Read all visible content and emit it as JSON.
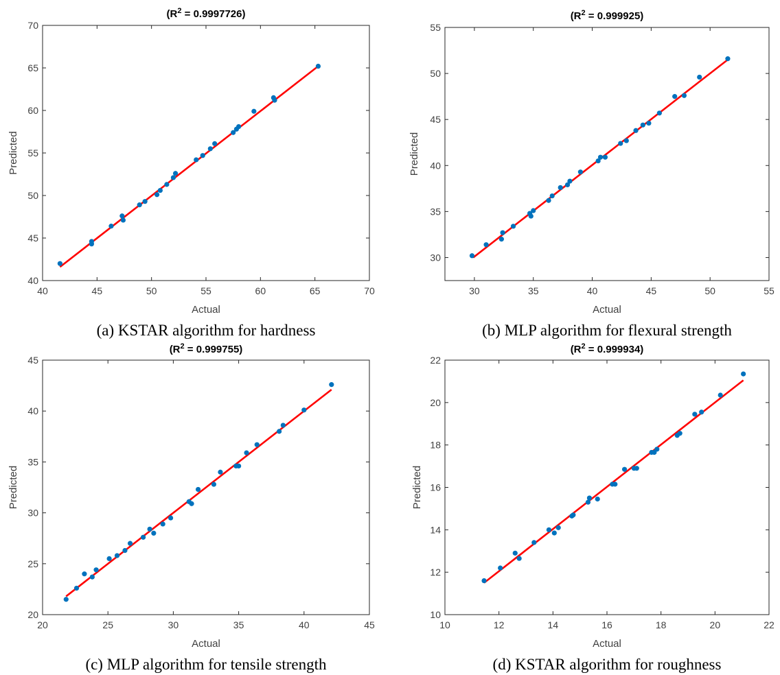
{
  "chart_data": [
    {
      "type": "scatter",
      "title_prefix": "(R",
      "title_sup": "2",
      "title_suffix": " = 0.9997726)",
      "xlabel": "Actual",
      "ylabel": "Predicted",
      "caption": "(a) KSTAR algorithm for hardness",
      "xlim": [
        40,
        70
      ],
      "ylim": [
        40,
        70
      ],
      "xticks": [
        40,
        45,
        50,
        55,
        60,
        65,
        70
      ],
      "yticks": [
        40,
        45,
        50,
        55,
        60,
        65,
        70
      ],
      "grid": false,
      "colors": {
        "points": "#0072BD",
        "fit_line": "#FF0000"
      },
      "fit_line": {
        "x": [
          41.6,
          65.3
        ],
        "y": [
          41.6,
          65.2
        ]
      },
      "points": {
        "x": [
          41.6,
          44.5,
          44.5,
          46.3,
          47.3,
          47.4,
          48.9,
          49.4,
          50.5,
          50.8,
          51.4,
          52.0,
          52.2,
          54.1,
          54.7,
          55.4,
          55.8,
          57.5,
          57.8,
          58.0,
          59.4,
          61.2,
          61.3,
          65.3
        ],
        "y": [
          42.0,
          44.3,
          44.6,
          46.4,
          47.6,
          47.1,
          48.9,
          49.3,
          50.1,
          50.6,
          51.3,
          52.1,
          52.6,
          54.2,
          54.7,
          55.5,
          56.1,
          57.4,
          57.8,
          58.1,
          59.9,
          61.5,
          61.2,
          65.2
        ]
      }
    },
    {
      "type": "scatter",
      "title_prefix": "(R",
      "title_sup": "2",
      "title_suffix": " = 0.999925)",
      "xlabel": "Actual",
      "ylabel": "Predicted",
      "caption": "(b) MLP algorithm for flexural strength",
      "xlim": [
        27.5,
        55
      ],
      "ylim": [
        27.5,
        55
      ],
      "xticks": [
        30,
        35,
        40,
        45,
        50,
        55
      ],
      "yticks": [
        30,
        35,
        40,
        45,
        50,
        55
      ],
      "grid": false,
      "colors": {
        "points": "#0072BD",
        "fit_line": "#FF0000"
      },
      "fit_line": {
        "x": [
          29.9,
          51.5
        ],
        "y": [
          30.0,
          51.5
        ]
      },
      "points": {
        "x": [
          29.8,
          31.0,
          32.3,
          32.4,
          33.3,
          34.7,
          34.8,
          35.0,
          36.3,
          36.6,
          37.3,
          37.9,
          38.1,
          39.0,
          40.5,
          40.7,
          41.1,
          42.4,
          42.9,
          43.7,
          44.3,
          44.8,
          45.7,
          47.0,
          47.8,
          49.1,
          51.5
        ],
        "y": [
          30.2,
          31.4,
          32.0,
          32.7,
          33.4,
          34.8,
          34.5,
          35.1,
          36.2,
          36.7,
          37.6,
          37.9,
          38.3,
          39.3,
          40.5,
          40.9,
          40.9,
          42.4,
          42.7,
          43.8,
          44.4,
          44.6,
          45.7,
          47.5,
          47.6,
          49.6,
          51.6
        ]
      }
    },
    {
      "type": "scatter",
      "title_prefix": "(R",
      "title_sup": "2",
      "title_suffix": " = 0.999755)",
      "xlabel": "Actual",
      "ylabel": "Predicted",
      "caption": "(c) MLP algorithm for tensile strength",
      "xlim": [
        20,
        45
      ],
      "ylim": [
        20,
        45
      ],
      "xticks": [
        20,
        25,
        30,
        35,
        40,
        45
      ],
      "yticks": [
        20,
        25,
        30,
        35,
        40,
        45
      ],
      "grid": false,
      "colors": {
        "points": "#0072BD",
        "fit_line": "#FF0000"
      },
      "fit_line": {
        "x": [
          21.8,
          42.1
        ],
        "y": [
          21.8,
          42.1
        ]
      },
      "points": {
        "x": [
          21.8,
          22.6,
          23.2,
          23.8,
          24.1,
          25.1,
          25.7,
          26.3,
          26.7,
          27.7,
          28.2,
          28.5,
          29.2,
          29.8,
          31.2,
          31.4,
          31.9,
          33.1,
          33.6,
          34.8,
          35.0,
          35.6,
          36.4,
          38.1,
          38.4,
          40.0,
          42.1
        ],
        "y": [
          21.5,
          22.6,
          24.0,
          23.7,
          24.4,
          25.5,
          25.8,
          26.3,
          27.0,
          27.6,
          28.4,
          28.0,
          28.9,
          29.5,
          31.1,
          30.9,
          32.3,
          32.8,
          34.0,
          34.6,
          34.6,
          35.9,
          36.7,
          38.0,
          38.6,
          40.1,
          42.6
        ]
      }
    },
    {
      "type": "scatter",
      "title_prefix": "(R",
      "title_sup": "2",
      "title_suffix": " = 0.999934)",
      "xlabel": "Actual",
      "ylabel": "Predicted",
      "caption": "(d) KSTAR algorithm for roughness",
      "xlim": [
        10,
        22
      ],
      "ylim": [
        10,
        22
      ],
      "xticks": [
        10,
        12,
        14,
        16,
        18,
        20,
        22
      ],
      "yticks": [
        10,
        12,
        14,
        16,
        18,
        20,
        22
      ],
      "grid": false,
      "colors": {
        "points": "#0072BD",
        "fit_line": "#FF0000"
      },
      "fit_line": {
        "x": [
          11.45,
          21.05
        ],
        "y": [
          11.5,
          21.05
        ]
      },
      "points": {
        "x": [
          11.45,
          12.05,
          12.6,
          12.75,
          13.3,
          13.85,
          14.05,
          14.2,
          14.7,
          14.75,
          15.3,
          15.35,
          15.65,
          16.2,
          16.3,
          16.65,
          17.0,
          17.1,
          17.65,
          17.75,
          17.85,
          18.6,
          18.7,
          19.25,
          19.5,
          20.2,
          21.05
        ],
        "y": [
          11.6,
          12.2,
          12.9,
          12.65,
          13.4,
          14.0,
          13.85,
          14.1,
          14.65,
          14.7,
          15.3,
          15.5,
          15.45,
          16.15,
          16.15,
          16.85,
          16.9,
          16.9,
          17.65,
          17.65,
          17.8,
          18.45,
          18.55,
          19.45,
          19.55,
          20.35,
          21.35
        ]
      }
    }
  ]
}
